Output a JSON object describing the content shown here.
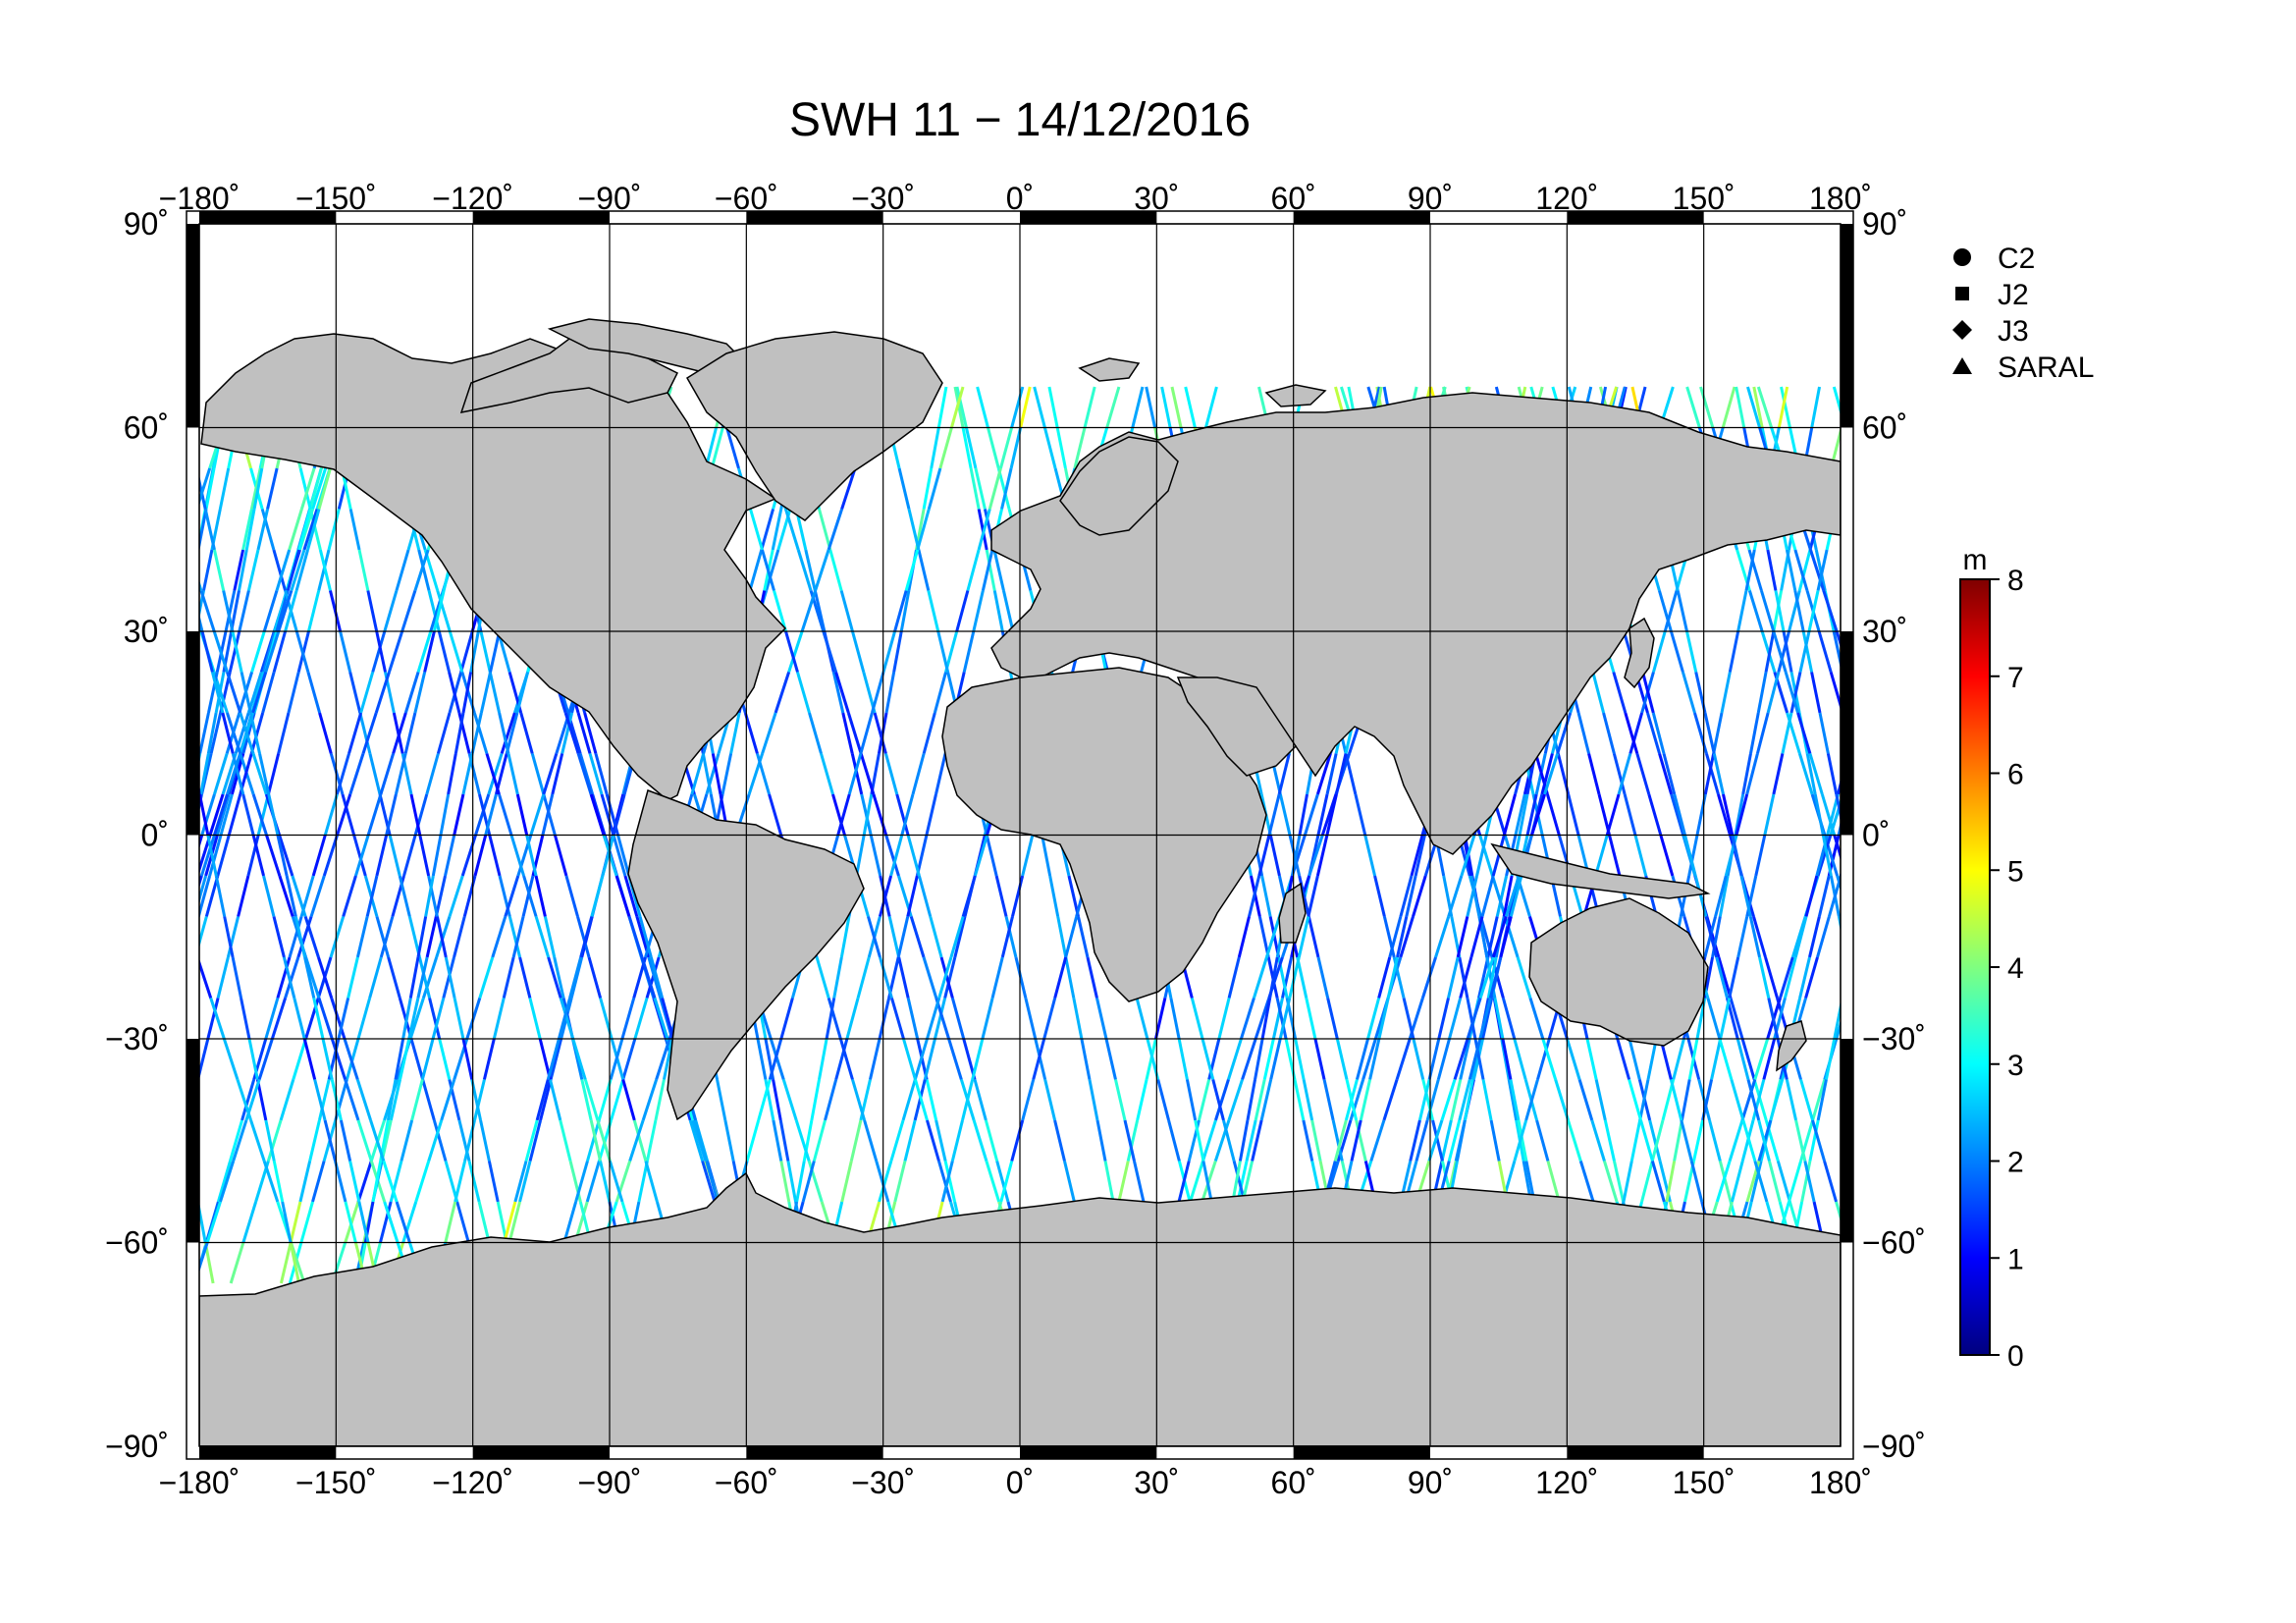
{
  "title": "SWH 11 − 14/12/2016",
  "longitude_ticks": [
    "−180˚",
    "−150˚",
    "−120˚",
    "−90˚",
    "−60˚",
    "−30˚",
    "0˚",
    "30˚",
    "60˚",
    "90˚",
    "120˚",
    "150˚",
    "180˚"
  ],
  "latitude_ticks": [
    "90˚",
    "60˚",
    "30˚",
    "0˚",
    "−30˚",
    "−60˚",
    "−90˚"
  ],
  "map_extent": {
    "lon": [
      -180,
      180
    ],
    "lat": [
      -90,
      90
    ],
    "grid_step_deg": 30
  },
  "satellite_legend": [
    {
      "symbol": "circle",
      "label": "C2"
    },
    {
      "symbol": "square",
      "label": "J2"
    },
    {
      "symbol": "diamond",
      "label": "J3"
    },
    {
      "symbol": "triangle",
      "label": "SARAL"
    }
  ],
  "colorbar": {
    "unit": "m",
    "range": [
      0,
      8
    ],
    "tick_labels": [
      "8",
      "7",
      "6",
      "5",
      "4",
      "3",
      "2",
      "1",
      "0"
    ],
    "colormap": "jet"
  },
  "colors": {
    "land": "#c0c0c0",
    "ocean": "#ffffff",
    "grid": "#000000",
    "frame": "#000000"
  }
}
